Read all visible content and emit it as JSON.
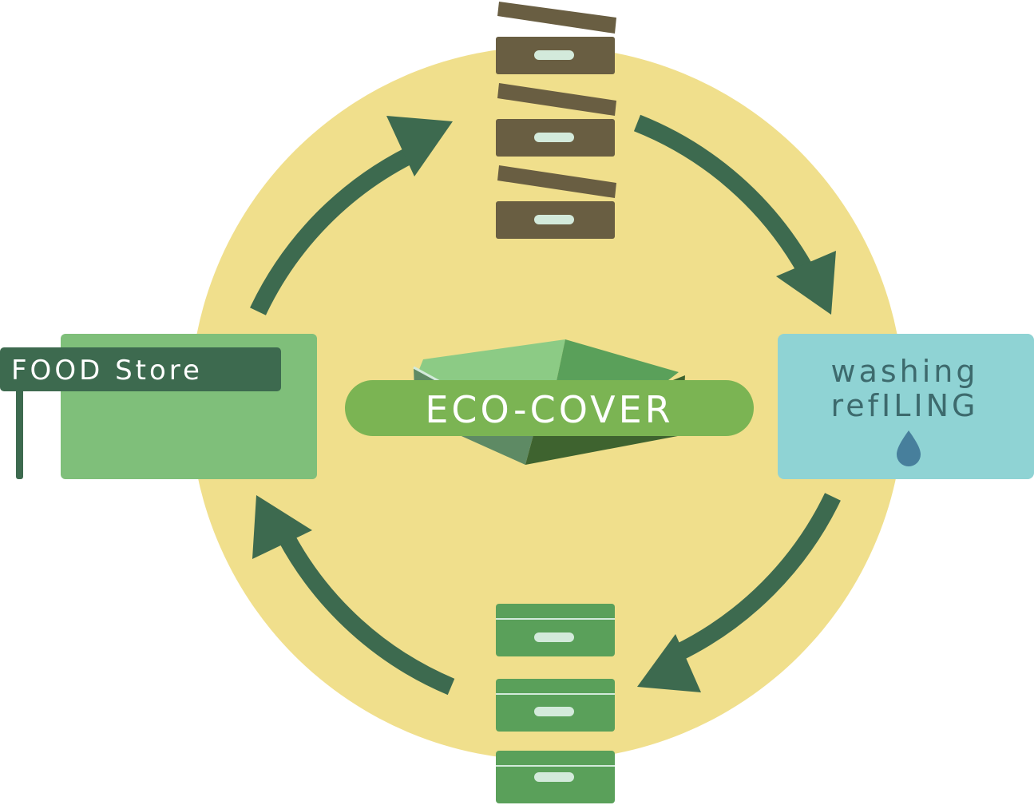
{
  "colors": {
    "background": "#ffffff",
    "circle": "#f0df8c",
    "arrow": "#3d6a4f",
    "box_brown": "#695e42",
    "box_green": "#5aa05a",
    "handle": "#d3eadb",
    "store_panel": "#7fbf7a",
    "store_sign": "#3d6a4f",
    "washing_panel": "#8fd3d4",
    "washing_text": "#3d6a6d",
    "droplet": "#477f9c",
    "eco_badge": "#7bb453",
    "eco_text": "#ffffff"
  },
  "center": {
    "label": "ECO-COVER"
  },
  "food_store": {
    "label": "FOOD Store"
  },
  "washing": {
    "line1": "washing",
    "line2": "refILING"
  },
  "icons": {
    "droplet": "water-drop-icon",
    "store_post": "signpost-icon"
  },
  "stacks": {
    "top": {
      "state": "lids-open",
      "count": 3
    },
    "bottom": {
      "state": "lids-closed",
      "count": 3
    }
  },
  "cycle": {
    "direction": "clockwise",
    "arrows": 4
  }
}
